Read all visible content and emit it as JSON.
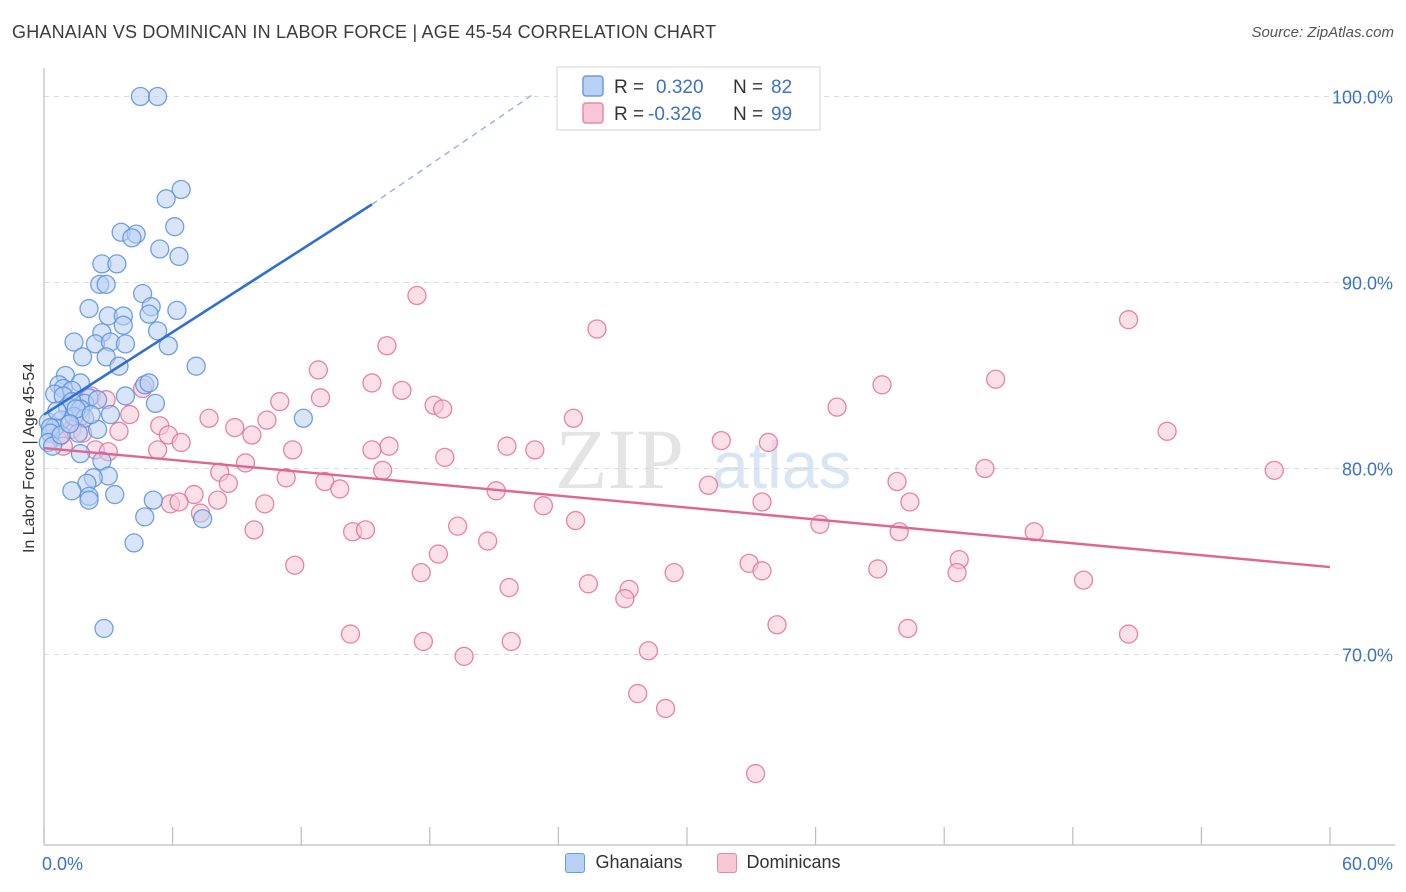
{
  "header": {
    "title": "GHANAIAN VS DOMINICAN IN LABOR FORCE | AGE 45-54 CORRELATION CHART",
    "source": "Source: ZipAtlas.com"
  },
  "watermark": {
    "zip": "ZIP",
    "atlas": "atlas"
  },
  "stats_legend": [
    {
      "r_label": "R =",
      "r_value": "0.320",
      "n_label": "N =",
      "n_value": "82",
      "color": "#5b8fe0"
    },
    {
      "r_label": "R =",
      "r_value": "-0.326",
      "n_label": "N =",
      "n_value": "99",
      "color": "#e66f97"
    }
  ],
  "chart_data": {
    "type": "scatter",
    "xlabel": "",
    "ylabel": "In Labor Force | Age 45-54",
    "xlim": [
      0,
      60
    ],
    "ylim": [
      60,
      101.5
    ],
    "x_tick_labels": [
      "0.0%",
      "60.0%"
    ],
    "y_ticks": [
      70,
      80,
      90,
      100
    ],
    "y_tick_labels": [
      "70.0%",
      "80.0%",
      "90.0%",
      "100.0%"
    ],
    "grid": true,
    "legend_position": "bottom-center",
    "series": [
      {
        "name": "Ghanaians",
        "color": "#5b8fe0",
        "fill": "#b8d0f4",
        "trend": {
          "x0": 0.0,
          "y0": 82.9,
          "x1": 15.3,
          "y1": 94.2,
          "dash_to_x": 22.8,
          "dash_to_y": 100.1
        },
        "points": [
          [
            4.5,
            100
          ],
          [
            5.3,
            100
          ],
          [
            6.4,
            95
          ],
          [
            5.7,
            94.5
          ],
          [
            6.1,
            93
          ],
          [
            3.6,
            92.7
          ],
          [
            4.3,
            92.6
          ],
          [
            4.1,
            92.4
          ],
          [
            5.4,
            91.8
          ],
          [
            6.3,
            91.4
          ],
          [
            2.7,
            91
          ],
          [
            3.4,
            91
          ],
          [
            2.6,
            89.9
          ],
          [
            2.9,
            89.9
          ],
          [
            4.6,
            89.4
          ],
          [
            2.1,
            88.6
          ],
          [
            5.0,
            88.7
          ],
          [
            6.2,
            88.5
          ],
          [
            3.0,
            88.2
          ],
          [
            3.7,
            88.2
          ],
          [
            4.9,
            88.3
          ],
          [
            3.7,
            87.7
          ],
          [
            5.3,
            87.4
          ],
          [
            2.7,
            87.3
          ],
          [
            1.4,
            86.8
          ],
          [
            2.4,
            86.7
          ],
          [
            3.1,
            86.8
          ],
          [
            3.8,
            86.7
          ],
          [
            5.8,
            86.6
          ],
          [
            1.8,
            86
          ],
          [
            2.9,
            86
          ],
          [
            7.1,
            85.5
          ],
          [
            3.5,
            85.5
          ],
          [
            1.0,
            85
          ],
          [
            1.7,
            84.6
          ],
          [
            4.7,
            84.5
          ],
          [
            0.7,
            84.5
          ],
          [
            0.9,
            84.3
          ],
          [
            0.5,
            84
          ],
          [
            1.3,
            84.2
          ],
          [
            2.1,
            83.8
          ],
          [
            0.9,
            83.9
          ],
          [
            1.9,
            83.5
          ],
          [
            2.5,
            83.7
          ],
          [
            1.1,
            83.3
          ],
          [
            1.3,
            83.6
          ],
          [
            5.2,
            83.5
          ],
          [
            1.7,
            83.2
          ],
          [
            0.2,
            82.5
          ],
          [
            0.8,
            82.6
          ],
          [
            1.4,
            82.8
          ],
          [
            0.5,
            82.2
          ],
          [
            1.9,
            82.7
          ],
          [
            12.1,
            82.7
          ],
          [
            0.3,
            82.2
          ],
          [
            2.5,
            82.1
          ],
          [
            0.3,
            81.9
          ],
          [
            1.6,
            81.9
          ],
          [
            0.2,
            81.4
          ],
          [
            0.4,
            81.2
          ],
          [
            1.7,
            80.8
          ],
          [
            2.7,
            80.4
          ],
          [
            3.0,
            79.6
          ],
          [
            2.3,
            79.5
          ],
          [
            2.0,
            79.2
          ],
          [
            1.3,
            78.8
          ],
          [
            2.1,
            78.5
          ],
          [
            3.3,
            78.6
          ],
          [
            2.1,
            78.3
          ],
          [
            5.1,
            78.3
          ],
          [
            7.4,
            77.3
          ],
          [
            4.7,
            77.4
          ],
          [
            4.2,
            76
          ],
          [
            2.8,
            71.4
          ],
          [
            4.9,
            84.6
          ],
          [
            0.6,
            83.1
          ],
          [
            1.5,
            83.2
          ],
          [
            3.8,
            83.9
          ],
          [
            2.2,
            82.9
          ],
          [
            0.8,
            81.8
          ],
          [
            1.2,
            82.4
          ],
          [
            3.1,
            82.9
          ]
        ]
      },
      {
        "name": "Dominicans",
        "color": "#e66f97",
        "fill": "#f8c7d6",
        "trend": {
          "x0": 0.0,
          "y0": 81.1,
          "x1": 60.0,
          "y1": 74.7
        },
        "points": [
          [
            17.4,
            89.3
          ],
          [
            50.6,
            88
          ],
          [
            25.8,
            87.5
          ],
          [
            16.0,
            86.6
          ],
          [
            12.8,
            85.3
          ],
          [
            15.3,
            84.6
          ],
          [
            39.1,
            84.5
          ],
          [
            44.4,
            84.8
          ],
          [
            16.7,
            84.2
          ],
          [
            2.2,
            83.9
          ],
          [
            4.6,
            84.3
          ],
          [
            11.0,
            83.6
          ],
          [
            12.9,
            83.8
          ],
          [
            18.2,
            83.4
          ],
          [
            18.6,
            83.2
          ],
          [
            37.0,
            83.3
          ],
          [
            2.9,
            83.7
          ],
          [
            4.0,
            82.9
          ],
          [
            7.7,
            82.7
          ],
          [
            8.9,
            82.2
          ],
          [
            24.7,
            82.7
          ],
          [
            1.7,
            82.8
          ],
          [
            3.5,
            82
          ],
          [
            5.4,
            82.3
          ],
          [
            1.3,
            82.1
          ],
          [
            0.7,
            81.7
          ],
          [
            1.8,
            81.9
          ],
          [
            5.8,
            81.8
          ],
          [
            6.4,
            81.4
          ],
          [
            9.7,
            81.8
          ],
          [
            16.1,
            81.2
          ],
          [
            21.6,
            81.2
          ],
          [
            22.9,
            81
          ],
          [
            31.6,
            81.5
          ],
          [
            33.8,
            81.4
          ],
          [
            52.4,
            82
          ],
          [
            0.9,
            81.2
          ],
          [
            2.4,
            81
          ],
          [
            5.3,
            81
          ],
          [
            11.6,
            81
          ],
          [
            15.3,
            81
          ],
          [
            18.7,
            80.6
          ],
          [
            9.4,
            80.3
          ],
          [
            8.2,
            79.8
          ],
          [
            15.8,
            79.9
          ],
          [
            43.9,
            80
          ],
          [
            57.4,
            79.9
          ],
          [
            11.3,
            79.5
          ],
          [
            8.6,
            79.2
          ],
          [
            13.1,
            79.3
          ],
          [
            13.8,
            78.9
          ],
          [
            21.1,
            78.8
          ],
          [
            31.0,
            79.1
          ],
          [
            39.8,
            79.3
          ],
          [
            7.0,
            78.6
          ],
          [
            8.1,
            78.3
          ],
          [
            5.9,
            78.1
          ],
          [
            10.3,
            78.1
          ],
          [
            23.3,
            78
          ],
          [
            33.5,
            78.2
          ],
          [
            40.4,
            78.2
          ],
          [
            7.3,
            77.6
          ],
          [
            24.8,
            77.2
          ],
          [
            36.2,
            77
          ],
          [
            9.8,
            76.7
          ],
          [
            14.4,
            76.6
          ],
          [
            15.0,
            76.7
          ],
          [
            19.3,
            76.9
          ],
          [
            20.7,
            76.1
          ],
          [
            39.9,
            76.6
          ],
          [
            46.2,
            76.6
          ],
          [
            18.4,
            75.4
          ],
          [
            11.7,
            74.8
          ],
          [
            32.9,
            74.9
          ],
          [
            38.9,
            74.6
          ],
          [
            42.7,
            75.1
          ],
          [
            17.6,
            74.4
          ],
          [
            29.4,
            74.4
          ],
          [
            33.5,
            74.5
          ],
          [
            42.6,
            74.4
          ],
          [
            48.5,
            74
          ],
          [
            21.7,
            73.6
          ],
          [
            25.4,
            73.8
          ],
          [
            27.3,
            73.5
          ],
          [
            27.1,
            73
          ],
          [
            28.2,
            70.2
          ],
          [
            14.3,
            71.1
          ],
          [
            17.7,
            70.7
          ],
          [
            21.8,
            70.7
          ],
          [
            34.2,
            71.6
          ],
          [
            40.3,
            71.4
          ],
          [
            50.6,
            71.1
          ],
          [
            19.6,
            69.9
          ],
          [
            27.7,
            67.9
          ],
          [
            29.0,
            67.1
          ],
          [
            33.2,
            63.6
          ],
          [
            6.3,
            78.2
          ],
          [
            3.0,
            80.9
          ],
          [
            10.4,
            82.6
          ]
        ]
      }
    ]
  }
}
